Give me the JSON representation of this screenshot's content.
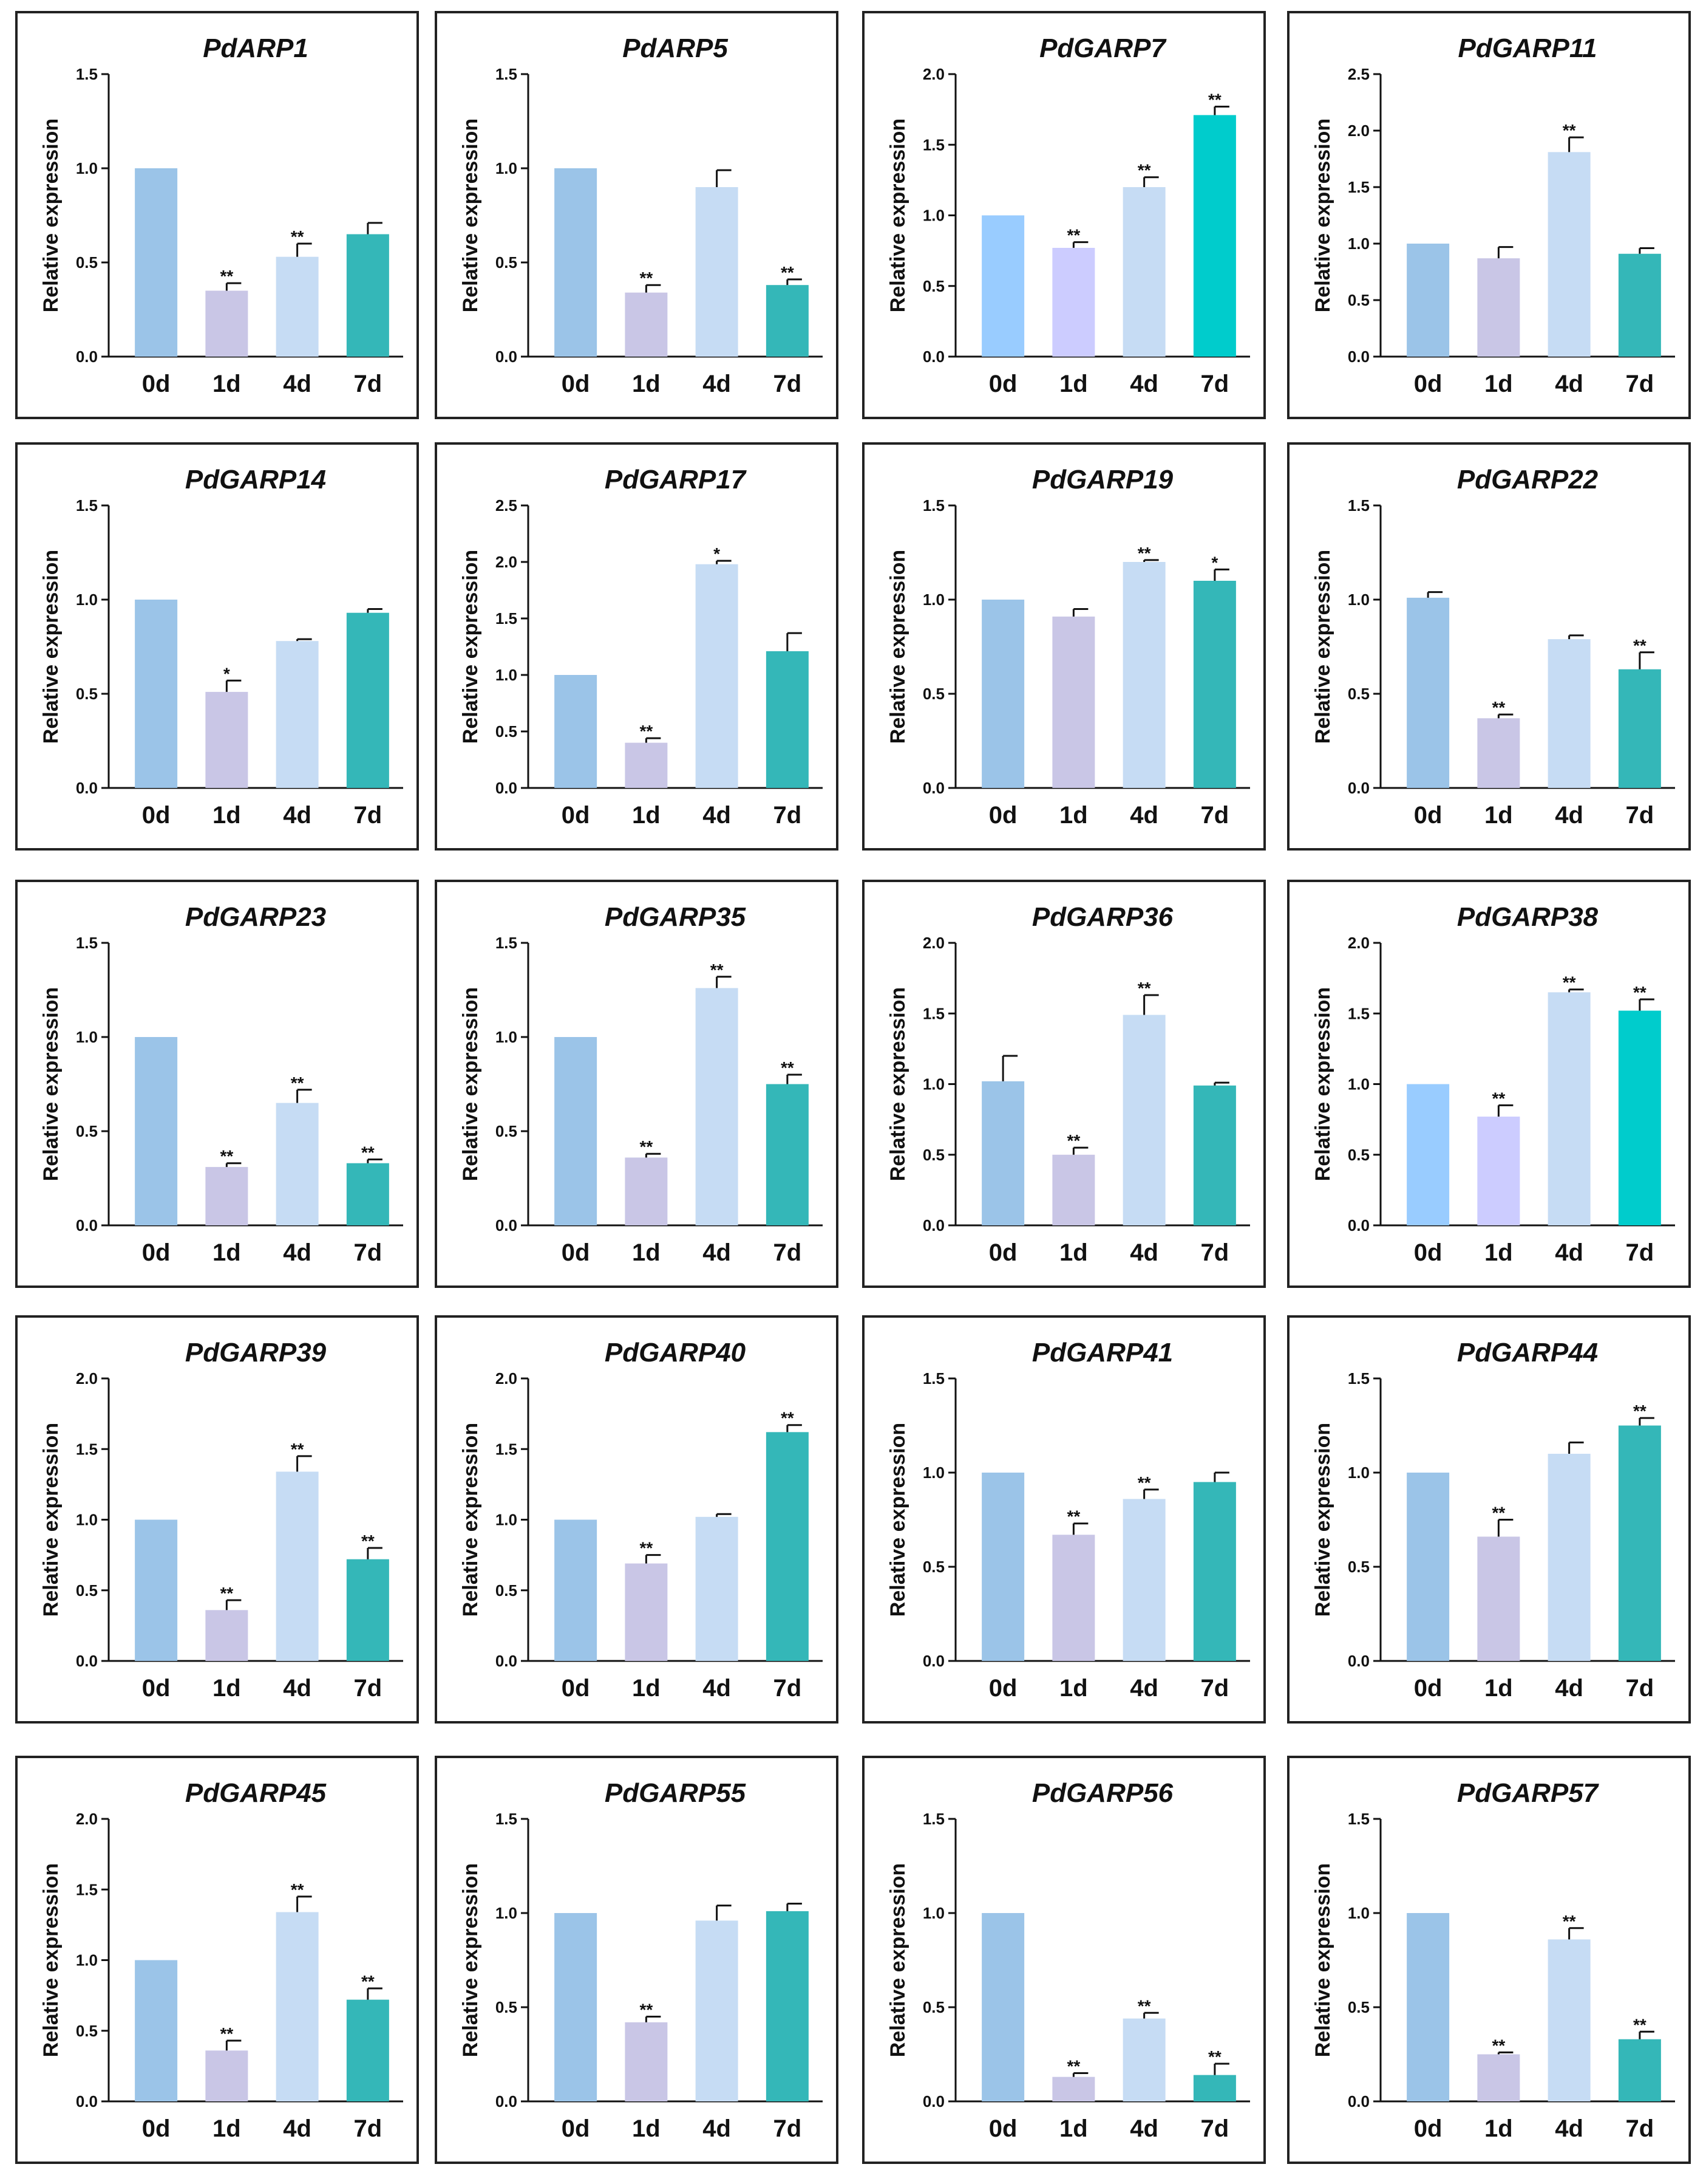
{
  "figure": {
    "ylabel": "Relative expression",
    "categories": [
      "0d",
      "1d",
      "4d",
      "7d"
    ],
    "palettes": {
      "standard": [
        "#9bc4e8",
        "#c9c6e6",
        "#c6dcf4",
        "#34b7b8"
      ],
      "bright": [
        "#99ccff",
        "#ccccff",
        "#c6dcf4",
        "#00cccc"
      ]
    }
  },
  "chart_data": [
    {
      "type": "bar",
      "title": "PdARP1",
      "ylabel": "Relative expression",
      "categories": [
        "0d",
        "1d",
        "4d",
        "7d"
      ],
      "values": [
        1.0,
        0.35,
        0.53,
        0.65
      ],
      "errors": [
        0,
        0.04,
        0.07,
        0.06
      ],
      "significance": [
        "",
        "**",
        "**",
        ""
      ],
      "ylim": [
        0,
        1.5
      ],
      "yticks": [
        "0.0",
        "0.5",
        "1.0",
        "1.5"
      ],
      "palette": "standard"
    },
    {
      "type": "bar",
      "title": "PdARP5",
      "ylabel": "Relative expression",
      "categories": [
        "0d",
        "1d",
        "4d",
        "7d"
      ],
      "values": [
        1.0,
        0.34,
        0.9,
        0.38
      ],
      "errors": [
        0,
        0.04,
        0.09,
        0.03
      ],
      "significance": [
        "",
        "**",
        "",
        "**"
      ],
      "ylim": [
        0,
        1.5
      ],
      "yticks": [
        "0.0",
        "0.5",
        "1.0",
        "1.5"
      ],
      "palette": "standard"
    },
    {
      "type": "bar",
      "title": "PdGARP7",
      "ylabel": "Relative expression",
      "categories": [
        "0d",
        "1d",
        "4d",
        "7d"
      ],
      "values": [
        1.0,
        0.77,
        1.2,
        1.71
      ],
      "errors": [
        0,
        0.04,
        0.07,
        0.06
      ],
      "significance": [
        "",
        "**",
        "**",
        "**"
      ],
      "ylim": [
        0,
        2.0
      ],
      "yticks": [
        "0.0",
        "0.5",
        "1.0",
        "1.5",
        "2.0"
      ],
      "palette": "bright"
    },
    {
      "type": "bar",
      "title": "PdGARP11",
      "ylabel": "Relative expression",
      "categories": [
        "0d",
        "1d",
        "4d",
        "7d"
      ],
      "values": [
        1.0,
        0.87,
        1.81,
        0.91
      ],
      "errors": [
        0,
        0.1,
        0.13,
        0.05
      ],
      "significance": [
        "",
        "",
        "**",
        ""
      ],
      "ylim": [
        0,
        2.5
      ],
      "yticks": [
        "0.0",
        "0.5",
        "1.0",
        "1.5",
        "2.0",
        "2.5"
      ],
      "palette": "standard"
    },
    {
      "type": "bar",
      "title": "PdGARP14",
      "ylabel": "Relative expression",
      "categories": [
        "0d",
        "1d",
        "4d",
        "7d"
      ],
      "values": [
        1.0,
        0.51,
        0.78,
        0.93
      ],
      "errors": [
        0,
        0.06,
        0.01,
        0.02
      ],
      "significance": [
        "",
        "*",
        "",
        ""
      ],
      "ylim": [
        0,
        1.5
      ],
      "yticks": [
        "0.0",
        "0.5",
        "1.0",
        "1.5"
      ],
      "palette": "standard"
    },
    {
      "type": "bar",
      "title": "PdGARP17",
      "ylabel": "Relative expression",
      "categories": [
        "0d",
        "1d",
        "4d",
        "7d"
      ],
      "values": [
        1.0,
        0.4,
        1.98,
        1.21
      ],
      "errors": [
        0,
        0.04,
        0.03,
        0.16
      ],
      "significance": [
        "",
        "**",
        "*",
        ""
      ],
      "ylim": [
        0,
        2.5
      ],
      "yticks": [
        "0.0",
        "0.5",
        "1.0",
        "1.5",
        "2.0",
        "2.5"
      ],
      "palette": "standard"
    },
    {
      "type": "bar",
      "title": "PdGARP19",
      "ylabel": "Relative expression",
      "categories": [
        "0d",
        "1d",
        "4d",
        "7d"
      ],
      "values": [
        1.0,
        0.91,
        1.2,
        1.1
      ],
      "errors": [
        0,
        0.04,
        0.01,
        0.06
      ],
      "significance": [
        "",
        "",
        "**",
        "*"
      ],
      "ylim": [
        0,
        1.5
      ],
      "yticks": [
        "0.0",
        "0.5",
        "1.0",
        "1.5"
      ],
      "palette": "standard"
    },
    {
      "type": "bar",
      "title": "PdGARP22",
      "ylabel": "Relative expression",
      "categories": [
        "0d",
        "1d",
        "4d",
        "7d"
      ],
      "values": [
        1.01,
        0.37,
        0.79,
        0.63
      ],
      "errors": [
        0.03,
        0.02,
        0.02,
        0.09
      ],
      "significance": [
        "",
        "**",
        "",
        "**"
      ],
      "ylim": [
        0,
        1.5
      ],
      "yticks": [
        "0.0",
        "0.5",
        "1.0",
        "1.5"
      ],
      "palette": "standard"
    },
    {
      "type": "bar",
      "title": "PdGARP23",
      "ylabel": "Relative expression",
      "categories": [
        "0d",
        "1d",
        "4d",
        "7d"
      ],
      "values": [
        1.0,
        0.31,
        0.65,
        0.33
      ],
      "errors": [
        0,
        0.02,
        0.07,
        0.02
      ],
      "significance": [
        "",
        "**",
        "**",
        "**"
      ],
      "ylim": [
        0,
        1.5
      ],
      "yticks": [
        "0.0",
        "0.5",
        "1.0",
        "1.5"
      ],
      "palette": "standard"
    },
    {
      "type": "bar",
      "title": "PdGARP35",
      "ylabel": "Relative expression",
      "categories": [
        "0d",
        "1d",
        "4d",
        "7d"
      ],
      "values": [
        1.0,
        0.36,
        1.26,
        0.75
      ],
      "errors": [
        0,
        0.02,
        0.06,
        0.05
      ],
      "significance": [
        "",
        "**",
        "**",
        "**"
      ],
      "ylim": [
        0,
        1.5
      ],
      "yticks": [
        "0.0",
        "0.5",
        "1.0",
        "1.5"
      ],
      "palette": "standard"
    },
    {
      "type": "bar",
      "title": "PdGARP36",
      "ylabel": "Relative expression",
      "categories": [
        "0d",
        "1d",
        "4d",
        "7d"
      ],
      "values": [
        1.02,
        0.5,
        1.49,
        0.99
      ],
      "errors": [
        0.18,
        0.05,
        0.14,
        0.02
      ],
      "significance": [
        "",
        "**",
        "**",
        ""
      ],
      "ylim": [
        0,
        2.0
      ],
      "yticks": [
        "0.0",
        "0.5",
        "1.0",
        "1.5",
        "2.0"
      ],
      "palette": "standard"
    },
    {
      "type": "bar",
      "title": "PdGARP38",
      "ylabel": "Relative expression",
      "categories": [
        "0d",
        "1d",
        "4d",
        "7d"
      ],
      "values": [
        1.0,
        0.77,
        1.65,
        1.52
      ],
      "errors": [
        0,
        0.08,
        0.02,
        0.08
      ],
      "significance": [
        "",
        "**",
        "**",
        "**"
      ],
      "ylim": [
        0,
        2.0
      ],
      "yticks": [
        "0.0",
        "0.5",
        "1.0",
        "1.5",
        "2.0"
      ],
      "palette": "bright"
    },
    {
      "type": "bar",
      "title": "PdGARP39",
      "ylabel": "Relative expression",
      "categories": [
        "0d",
        "1d",
        "4d",
        "7d"
      ],
      "values": [
        1.0,
        0.36,
        1.34,
        0.72
      ],
      "errors": [
        0,
        0.07,
        0.11,
        0.08
      ],
      "significance": [
        "",
        "**",
        "**",
        "**"
      ],
      "ylim": [
        0,
        2.0
      ],
      "yticks": [
        "0.0",
        "0.5",
        "1.0",
        "1.5",
        "2.0"
      ],
      "palette": "standard"
    },
    {
      "type": "bar",
      "title": "PdGARP40",
      "ylabel": "Relative expression",
      "categories": [
        "0d",
        "1d",
        "4d",
        "7d"
      ],
      "values": [
        1.0,
        0.69,
        1.02,
        1.62
      ],
      "errors": [
        0,
        0.06,
        0.02,
        0.05
      ],
      "significance": [
        "",
        "**",
        "",
        "**"
      ],
      "ylim": [
        0,
        2.0
      ],
      "yticks": [
        "0.0",
        "0.5",
        "1.0",
        "1.5",
        "2.0"
      ],
      "palette": "standard"
    },
    {
      "type": "bar",
      "title": "PdGARP41",
      "ylabel": "Relative expression",
      "categories": [
        "0d",
        "1d",
        "4d",
        "7d"
      ],
      "values": [
        1.0,
        0.67,
        0.86,
        0.95
      ],
      "errors": [
        0,
        0.06,
        0.05,
        0.05
      ],
      "significance": [
        "",
        "**",
        "**",
        ""
      ],
      "ylim": [
        0,
        1.5
      ],
      "yticks": [
        "0.0",
        "0.5",
        "1.0",
        "1.5"
      ],
      "palette": "standard"
    },
    {
      "type": "bar",
      "title": "PdGARP44",
      "ylabel": "Relative expression",
      "categories": [
        "0d",
        "1d",
        "4d",
        "7d"
      ],
      "values": [
        1.0,
        0.66,
        1.1,
        1.25
      ],
      "errors": [
        0,
        0.09,
        0.06,
        0.04
      ],
      "significance": [
        "",
        "**",
        "",
        "**"
      ],
      "ylim": [
        0,
        1.5
      ],
      "yticks": [
        "0.0",
        "0.5",
        "1.0",
        "1.5"
      ],
      "palette": "standard"
    },
    {
      "type": "bar",
      "title": "PdGARP45",
      "ylabel": "Relative expression",
      "categories": [
        "0d",
        "1d",
        "4d",
        "7d"
      ],
      "values": [
        1.0,
        0.36,
        1.34,
        0.72
      ],
      "errors": [
        0,
        0.07,
        0.11,
        0.08
      ],
      "significance": [
        "",
        "**",
        "**",
        "**"
      ],
      "ylim": [
        0,
        2.0
      ],
      "yticks": [
        "0.0",
        "0.5",
        "1.0",
        "1.5",
        "2.0"
      ],
      "palette": "standard"
    },
    {
      "type": "bar",
      "title": "PdGARP55",
      "ylabel": "Relative expression",
      "categories": [
        "0d",
        "1d",
        "4d",
        "7d"
      ],
      "values": [
        1.0,
        0.42,
        0.96,
        1.01
      ],
      "errors": [
        0,
        0.03,
        0.08,
        0.04
      ],
      "significance": [
        "",
        "**",
        "",
        ""
      ],
      "ylim": [
        0,
        1.5
      ],
      "yticks": [
        "0.0",
        "0.5",
        "1.0",
        "1.5"
      ],
      "palette": "standard"
    },
    {
      "type": "bar",
      "title": "PdGARP56",
      "ylabel": "Relative expression",
      "categories": [
        "0d",
        "1d",
        "4d",
        "7d"
      ],
      "values": [
        1.0,
        0.13,
        0.44,
        0.14
      ],
      "errors": [
        0,
        0.02,
        0.03,
        0.06
      ],
      "significance": [
        "",
        "**",
        "**",
        "**"
      ],
      "ylim": [
        0,
        1.5
      ],
      "yticks": [
        "0.0",
        "0.5",
        "1.0",
        "1.5"
      ],
      "palette": "standard"
    },
    {
      "type": "bar",
      "title": "PdGARP57",
      "ylabel": "Relative expression",
      "categories": [
        "0d",
        "1d",
        "4d",
        "7d"
      ],
      "values": [
        1.0,
        0.25,
        0.86,
        0.33
      ],
      "errors": [
        0,
        0.01,
        0.06,
        0.04
      ],
      "significance": [
        "",
        "**",
        "**",
        "**"
      ],
      "ylim": [
        0,
        1.5
      ],
      "yticks": [
        "0.0",
        "0.5",
        "1.0",
        "1.5"
      ],
      "palette": "standard"
    }
  ]
}
